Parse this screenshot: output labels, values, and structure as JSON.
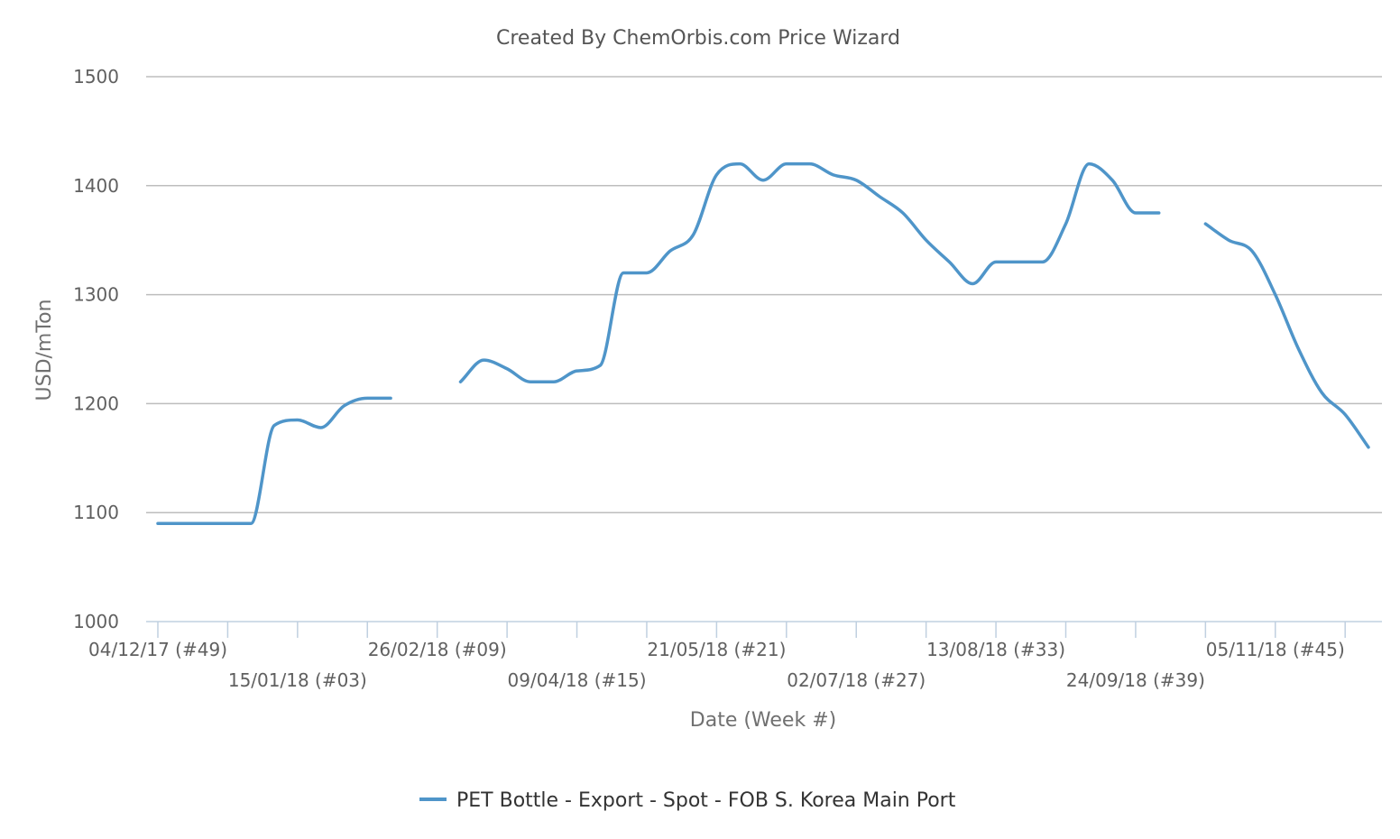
{
  "chart_data": {
    "type": "line",
    "title": "Created By ChemOrbis.com Price Wizard",
    "xlabel": "Date (Week #)",
    "ylabel": "USD/mTon",
    "ylim": [
      1000,
      1500
    ],
    "yticks": [
      1000,
      1100,
      1200,
      1300,
      1400,
      1500
    ],
    "grid": true,
    "legend_position": "bottom",
    "x_tick_labels": [
      "04/12/17 (#49)",
      "15/01/18 (#03)",
      "26/02/18 (#09)",
      "09/04/18 (#15)",
      "21/05/18 (#21)",
      "02/07/18 (#27)",
      "13/08/18 (#33)",
      "24/09/18 (#39)",
      "05/11/18 (#45)"
    ],
    "x_tick_dates": [
      "2017-12-04",
      "2018-01-15",
      "2018-02-26",
      "2018-04-09",
      "2018-05-21",
      "2018-07-02",
      "2018-08-13",
      "2018-09-24",
      "2018-11-05"
    ],
    "x_minor_tick_dates": [
      "2017-12-04",
      "2017-12-25",
      "2018-01-15",
      "2018-02-05",
      "2018-02-26",
      "2018-03-19",
      "2018-04-09",
      "2018-04-30",
      "2018-05-21",
      "2018-06-11",
      "2018-07-02",
      "2018-07-23",
      "2018-08-13",
      "2018-09-03",
      "2018-09-24",
      "2018-10-15",
      "2018-11-05",
      "2018-11-26"
    ],
    "series": [
      {
        "name": "PET Bottle - Export - Spot - FOB S. Korea Main Port",
        "color": "#4f95c9",
        "points": [
          [
            "2017-12-04",
            1090
          ],
          [
            "2017-12-11",
            1090
          ],
          [
            "2017-12-18",
            1090
          ],
          [
            "2017-12-25",
            1090
          ],
          [
            "2018-01-01",
            1090
          ],
          [
            "2018-01-08",
            1180
          ],
          [
            "2018-01-15",
            1185
          ],
          [
            "2018-01-22",
            1178
          ],
          [
            "2018-01-29",
            1198
          ],
          [
            "2018-02-05",
            1205
          ],
          [
            "2018-02-12",
            1205
          ],
          [
            "2018-02-19",
            null
          ],
          [
            "2018-02-26",
            null
          ],
          [
            "2018-03-05",
            1220
          ],
          [
            "2018-03-12",
            1240
          ],
          [
            "2018-03-19",
            1232
          ],
          [
            "2018-03-26",
            1220
          ],
          [
            "2018-04-02",
            1220
          ],
          [
            "2018-04-09",
            1230
          ],
          [
            "2018-04-16",
            1235
          ],
          [
            "2018-04-23",
            1320
          ],
          [
            "2018-04-30",
            1320
          ],
          [
            "2018-05-07",
            1340
          ],
          [
            "2018-05-14",
            1355
          ],
          [
            "2018-05-21",
            1410
          ],
          [
            "2018-05-28",
            1420
          ],
          [
            "2018-06-04",
            1405
          ],
          [
            "2018-06-11",
            1420
          ],
          [
            "2018-06-18",
            1420
          ],
          [
            "2018-06-25",
            1410
          ],
          [
            "2018-07-02",
            1405
          ],
          [
            "2018-07-09",
            1390
          ],
          [
            "2018-07-16",
            1375
          ],
          [
            "2018-07-23",
            1350
          ],
          [
            "2018-07-30",
            1330
          ],
          [
            "2018-08-06",
            1310
          ],
          [
            "2018-08-13",
            1330
          ],
          [
            "2018-08-20",
            1330
          ],
          [
            "2018-08-27",
            1330
          ],
          [
            "2018-09-03",
            1365
          ],
          [
            "2018-09-10",
            1420
          ],
          [
            "2018-09-17",
            1405
          ],
          [
            "2018-09-24",
            1375
          ],
          [
            "2018-10-01",
            1375
          ],
          [
            "2018-10-08",
            null
          ],
          [
            "2018-10-15",
            1365
          ],
          [
            "2018-10-22",
            1350
          ],
          [
            "2018-10-29",
            1340
          ],
          [
            "2018-11-05",
            1300
          ],
          [
            "2018-11-12",
            1250
          ],
          [
            "2018-11-19",
            1210
          ],
          [
            "2018-11-26",
            1190
          ],
          [
            "2018-12-03",
            1160
          ]
        ]
      }
    ]
  }
}
